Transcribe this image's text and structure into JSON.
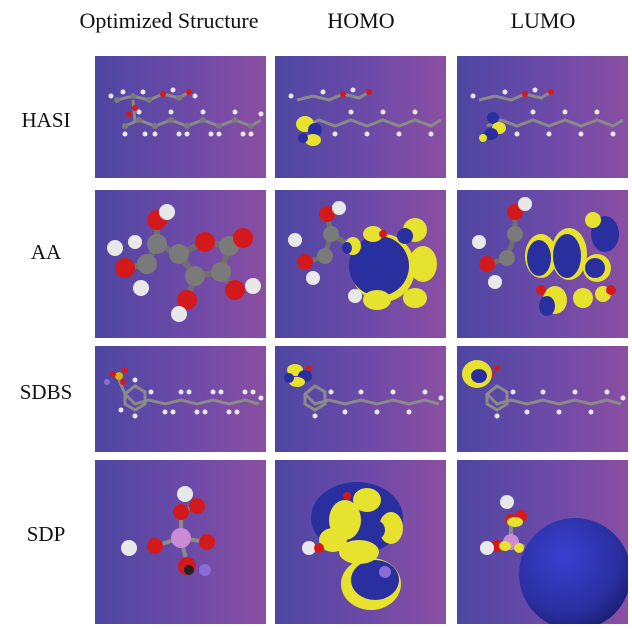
{
  "figure": {
    "column_headers": [
      "Optimized Structure",
      "HOMO",
      "LUMO"
    ],
    "row_labels": [
      "HASI",
      "AA",
      "SDBS",
      "SDP"
    ]
  },
  "colors": {
    "panel_gradient": [
      "#4d46a2",
      "#8a4fa2"
    ],
    "carbon": "#7a7a7a",
    "hydrogen": "#e8e8e8",
    "oxygen": "#d4191c",
    "sulfur": "#d8b400",
    "phosphorus": "#c98ad6",
    "sodium": "#8b6bd6",
    "orbital_positive": "#e6e22e",
    "orbital_negative": "#2a2fa0"
  }
}
